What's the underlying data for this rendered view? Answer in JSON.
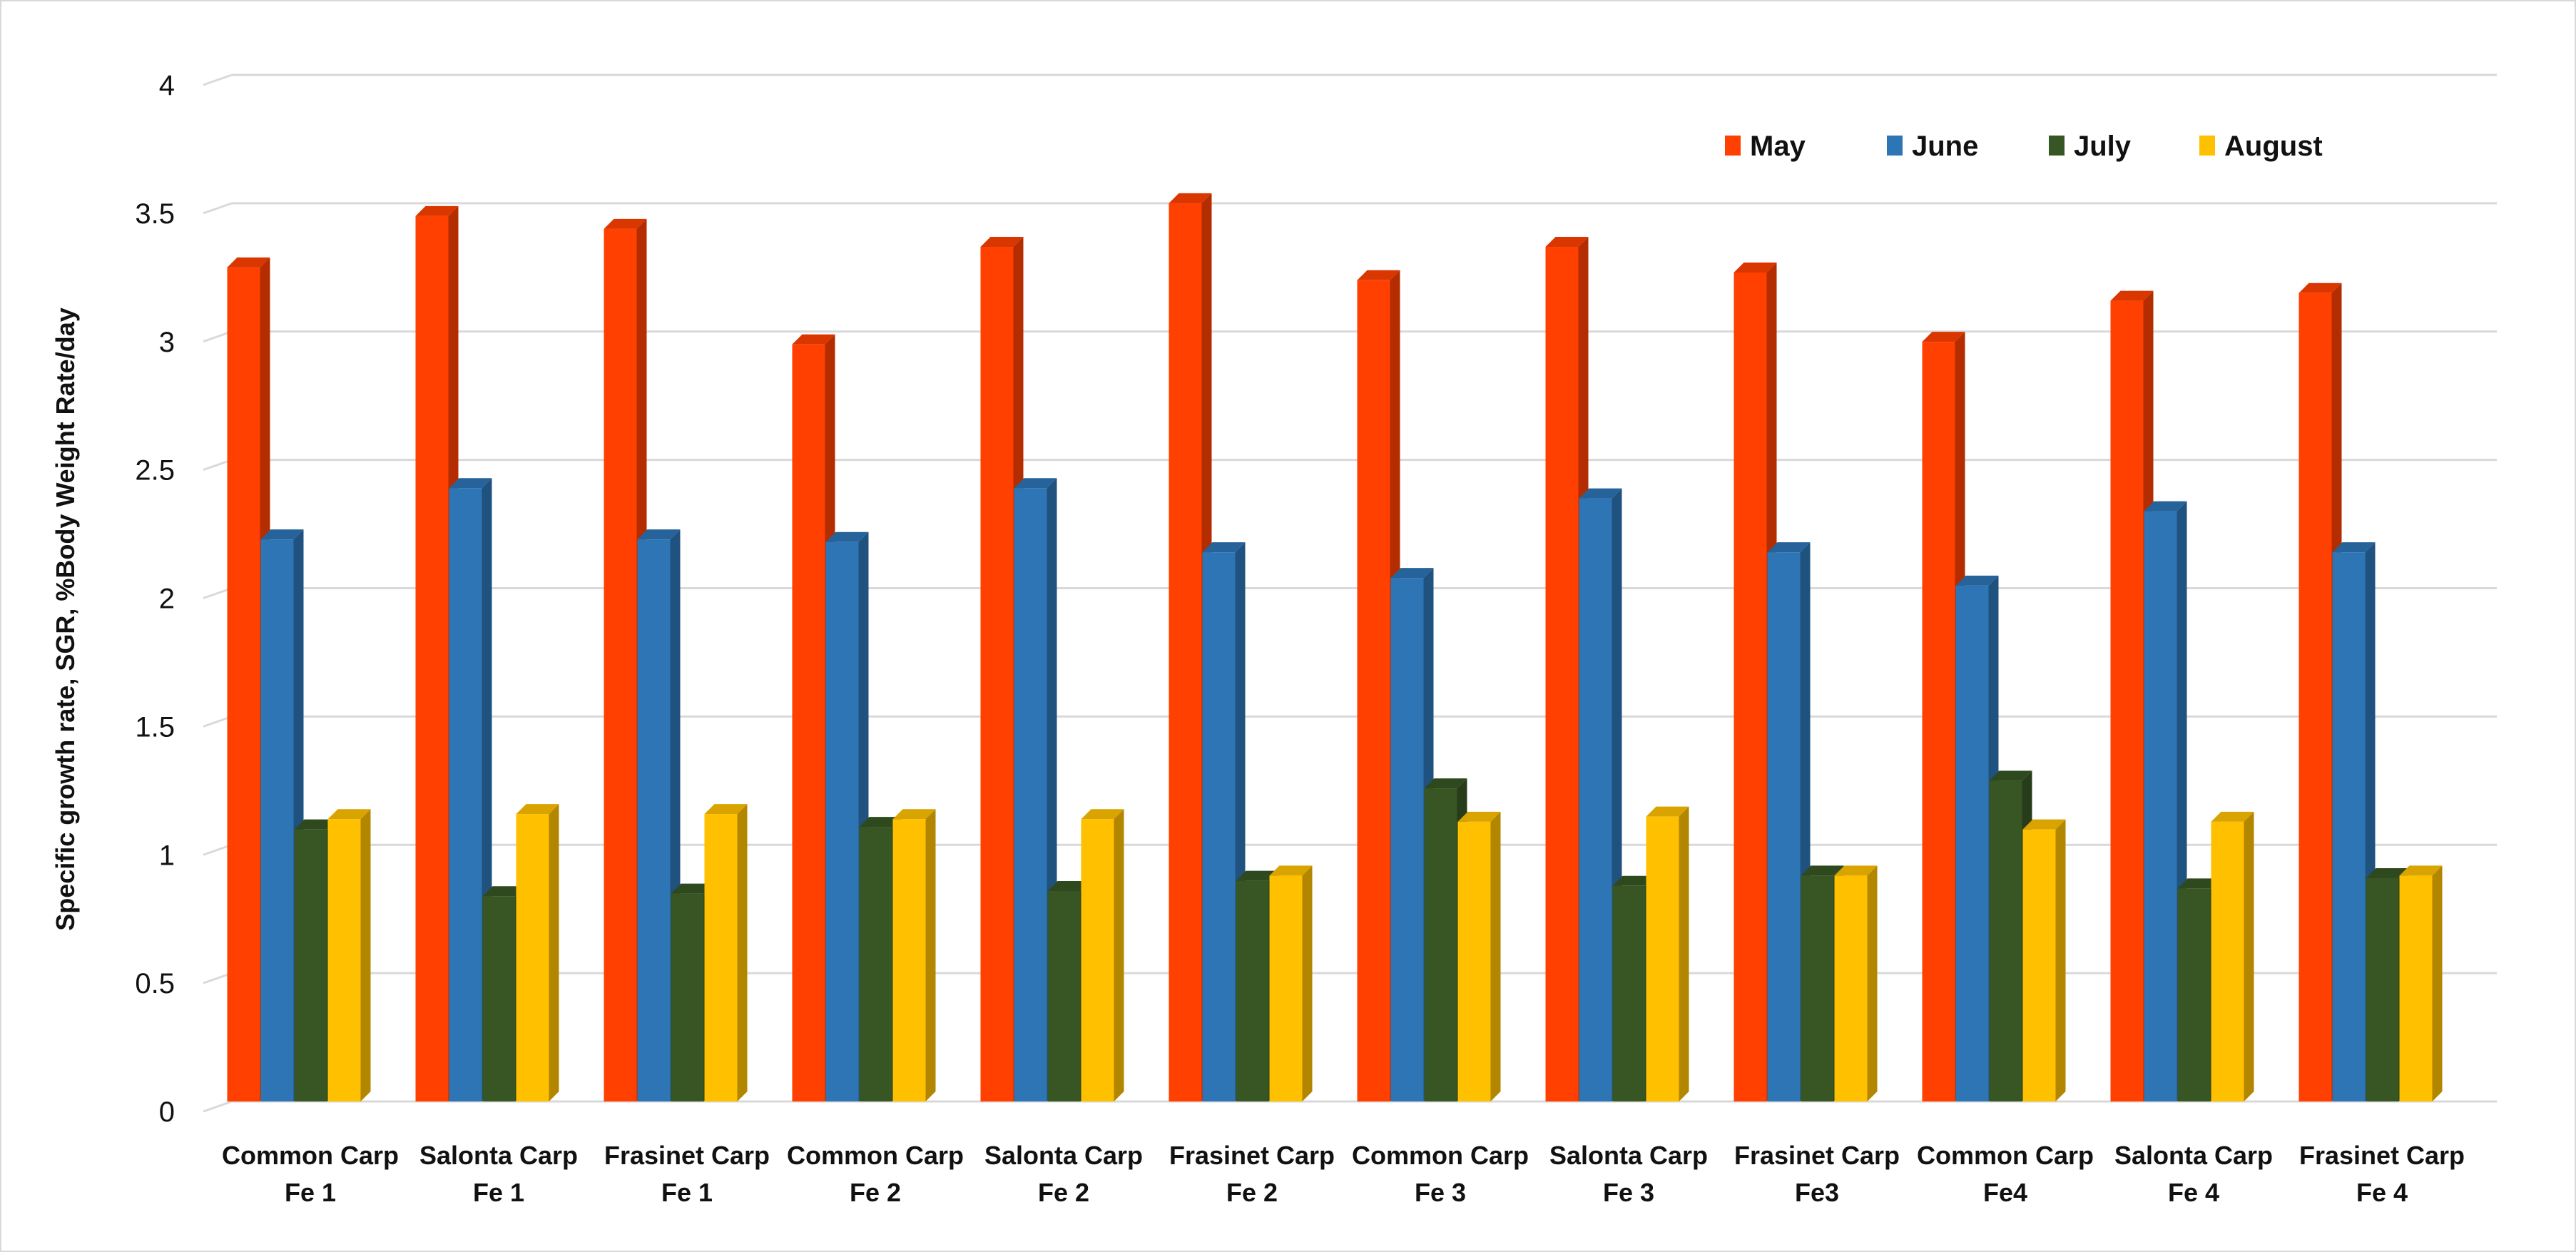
{
  "chart_data": {
    "type": "bar",
    "title": "",
    "xlabel": "",
    "ylabel": "Specific growth rate, SGR, %Body Weight Rate/day",
    "ylim": [
      0,
      4
    ],
    "yticks": [
      "0",
      "0.5",
      "1",
      "1.5",
      "2",
      "2.5",
      "3",
      "3.5",
      "4"
    ],
    "grid": true,
    "legend_position": "top-right",
    "categories": [
      [
        "Common Carp",
        "Fe 1"
      ],
      [
        "Salonta Carp",
        "Fe 1"
      ],
      [
        "Frasinet Carp",
        "Fe 1"
      ],
      [
        "Common Carp",
        "Fe 2"
      ],
      [
        "Salonta Carp",
        "Fe 2"
      ],
      [
        "Frasinet Carp",
        "Fe 2"
      ],
      [
        "Common Carp",
        "Fe 3"
      ],
      [
        "Salonta Carp",
        "Fe 3"
      ],
      [
        "Frasinet Carp",
        "Fe3"
      ],
      [
        "Common Carp",
        "Fe4"
      ],
      [
        "Salonta Carp",
        "Fe 4"
      ],
      [
        "Frasinet Carp",
        "Fe 4"
      ]
    ],
    "series": [
      {
        "name": "May",
        "color": "#ff4000",
        "values": [
          3.25,
          3.45,
          3.4,
          2.95,
          3.33,
          3.5,
          3.2,
          3.33,
          3.23,
          2.96,
          3.12,
          3.15
        ]
      },
      {
        "name": "June",
        "color": "#2e75b6",
        "values": [
          2.19,
          2.39,
          2.19,
          2.18,
          2.39,
          2.14,
          2.04,
          2.35,
          2.14,
          2.01,
          2.3,
          2.14
        ]
      },
      {
        "name": "July",
        "color": "#375623",
        "values": [
          1.06,
          0.8,
          0.81,
          1.07,
          0.82,
          0.86,
          1.22,
          0.84,
          0.88,
          1.25,
          0.83,
          0.87
        ]
      },
      {
        "name": "August",
        "color": "#ffc000",
        "values": [
          1.1,
          1.12,
          1.12,
          1.1,
          1.1,
          0.88,
          1.09,
          1.11,
          0.88,
          1.06,
          1.09,
          0.88
        ]
      }
    ]
  }
}
